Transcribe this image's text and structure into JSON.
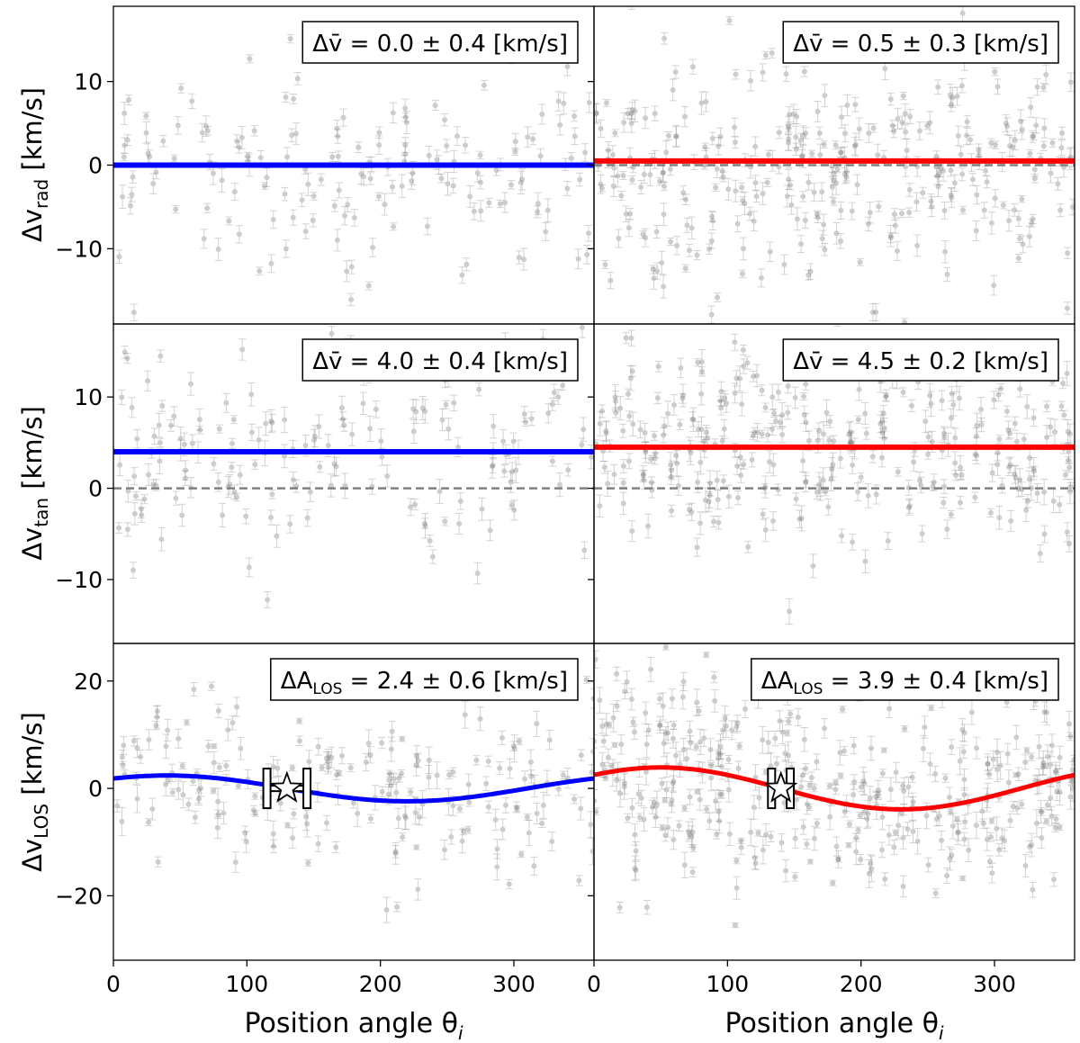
{
  "figure": {
    "shared_xlabel": "Position angle θ",
    "shared_xlabel_sub": "i",
    "xticks": [
      "0",
      "100",
      "200",
      "300"
    ],
    "ylabels": [
      {
        "main": "Δv",
        "sub": "rad",
        "unit": " [km/s]"
      },
      {
        "main": "Δv",
        "sub": "tan",
        "unit": " [km/s]"
      },
      {
        "main": "Δv",
        "sub": "LOS",
        "unit": " [km/s]"
      }
    ]
  },
  "chart_data": [
    {
      "type": "scatter",
      "panel": "row1-left",
      "row": 0,
      "col": 0,
      "xlim": [
        0,
        360
      ],
      "ylim": [
        -19,
        19
      ],
      "yticks": [
        10,
        0,
        -10
      ],
      "ytick_labels": [
        "10",
        "0",
        "−10"
      ],
      "annotation": {
        "lhs": "Δv̄",
        "text": " = 0.0 ± 0.4 [km/s]"
      },
      "fit": {
        "kind": "constant",
        "value": 0.0,
        "color": "#0000ff"
      },
      "zero_line": false,
      "scatter": {
        "n": 170,
        "y_mean": 0,
        "y_sd": 7,
        "seed": 11
      }
    },
    {
      "type": "scatter",
      "panel": "row1-right",
      "row": 0,
      "col": 1,
      "xlim": [
        0,
        360
      ],
      "ylim": [
        -19,
        19
      ],
      "yticks": [
        10,
        0,
        -10
      ],
      "ytick_labels": [
        "10",
        "0",
        "−10"
      ],
      "annotation": {
        "lhs": "Δv̄",
        "text": " = 0.5 ± 0.3 [km/s]"
      },
      "fit": {
        "kind": "constant",
        "value": 0.5,
        "color": "#ff0000"
      },
      "zero_line": true,
      "scatter": {
        "n": 330,
        "y_mean": 0,
        "y_sd": 7,
        "seed": 23
      }
    },
    {
      "type": "scatter",
      "panel": "row2-left",
      "row": 1,
      "col": 0,
      "xlim": [
        0,
        360
      ],
      "ylim": [
        -17,
        18
      ],
      "yticks": [
        10,
        0,
        -10
      ],
      "ytick_labels": [
        "10",
        "0",
        "−10"
      ],
      "annotation": {
        "lhs": "Δv̄",
        "text": " = 4.0 ± 0.4 [km/s]"
      },
      "fit": {
        "kind": "constant",
        "value": 4.0,
        "color": "#0000ff"
      },
      "zero_line": true,
      "scatter": {
        "n": 170,
        "y_mean": 4,
        "y_sd": 6.5,
        "seed": 37
      }
    },
    {
      "type": "scatter",
      "panel": "row2-right",
      "row": 1,
      "col": 1,
      "xlim": [
        0,
        360
      ],
      "ylim": [
        -17,
        18
      ],
      "yticks": [
        10,
        0,
        -10
      ],
      "ytick_labels": [
        "10",
        "0",
        "−10"
      ],
      "annotation": {
        "lhs": "Δv̄",
        "text": " = 4.5 ± 0.2 [km/s]"
      },
      "fit": {
        "kind": "constant",
        "value": 4.5,
        "color": "#ff0000"
      },
      "zero_line": true,
      "scatter": {
        "n": 330,
        "y_mean": 4.5,
        "y_sd": 5.5,
        "seed": 41
      }
    },
    {
      "type": "scatter",
      "panel": "row3-left",
      "row": 2,
      "col": 0,
      "xlim": [
        0,
        360
      ],
      "ylim": [
        -32,
        27
      ],
      "yticks": [
        20,
        0,
        -20
      ],
      "ytick_labels": [
        "20",
        "0",
        "−20"
      ],
      "annotation": {
        "lhs": "ΔA",
        "lhs_sub": "LOS",
        "text": " = 2.4 ± 0.6 [km/s]"
      },
      "fit": {
        "kind": "sinusoid",
        "amplitude": 2.4,
        "phase_deg": 130,
        "color": "#0000ff"
      },
      "zero_line": false,
      "marker": {
        "x": 130,
        "y": 0,
        "xerr": 15
      },
      "scatter": {
        "n": 200,
        "y_mean": 0,
        "y_sd": 8,
        "seed": 53
      }
    },
    {
      "type": "scatter",
      "panel": "row3-right",
      "row": 2,
      "col": 1,
      "xlim": [
        0,
        360
      ],
      "ylim": [
        -32,
        27
      ],
      "yticks": [
        20,
        0,
        -20
      ],
      "ytick_labels": [
        "20",
        "0",
        "−20"
      ],
      "annotation": {
        "lhs": "ΔA",
        "lhs_sub": "LOS",
        "text": " = 3.9 ± 0.4 [km/s]"
      },
      "fit": {
        "kind": "sinusoid",
        "amplitude": 3.9,
        "phase_deg": 140,
        "color": "#ff0000"
      },
      "zero_line": false,
      "marker": {
        "x": 140,
        "y": 0,
        "xerr": 7
      },
      "scatter": {
        "n": 380,
        "y_mean": 0,
        "y_sd": 8,
        "seed": 67
      }
    }
  ]
}
